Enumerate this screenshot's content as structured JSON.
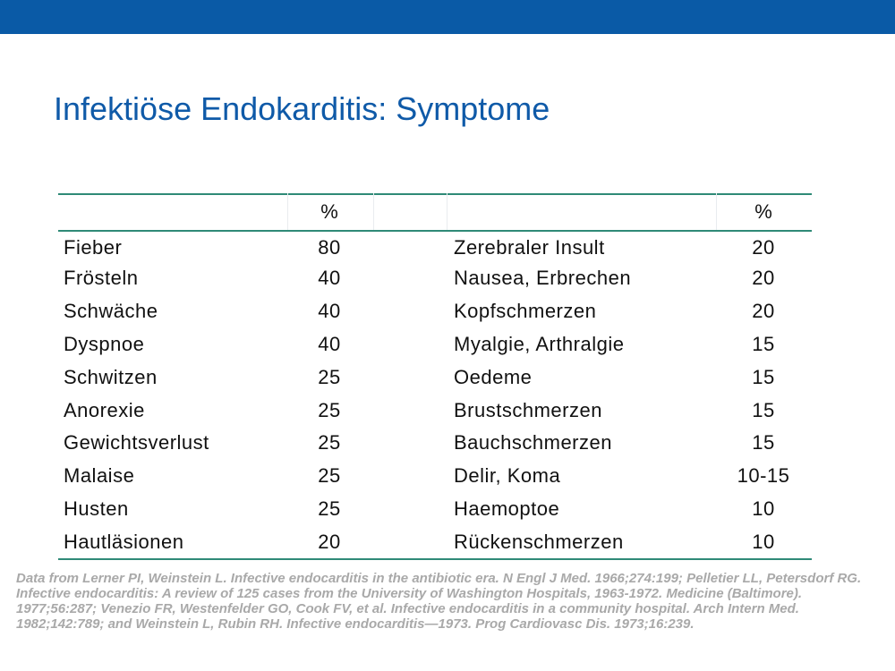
{
  "title": "Infektiöse Endokarditis: Symptome",
  "table": {
    "headers": {
      "left_name": "",
      "left_pct": "%",
      "right_name": "",
      "right_pct": "%"
    },
    "rows": [
      {
        "left": "Fieber",
        "left_pct": "80",
        "right": "Zerebraler Insult",
        "right_pct": "20"
      },
      {
        "left": "Frösteln",
        "left_pct": "40",
        "right": "Nausea, Erbrechen",
        "right_pct": "20"
      },
      {
        "left": "Schwäche",
        "left_pct": "40",
        "right": "Kopfschmerzen",
        "right_pct": "20"
      },
      {
        "left": "Dyspnoe",
        "left_pct": "40",
        "right": "Myalgie, Arthralgie",
        "right_pct": "15"
      },
      {
        "left": "Schwitzen",
        "left_pct": "25",
        "right": "Oedeme",
        "right_pct": "15"
      },
      {
        "left": "Anorexie",
        "left_pct": "25",
        "right": "Brustschmerzen",
        "right_pct": "15"
      },
      {
        "left": "Gewichtsverlust",
        "left_pct": "25",
        "right": "Bauchschmerzen",
        "right_pct": "15"
      },
      {
        "left": "Malaise",
        "left_pct": "25",
        "right": "Delir, Koma",
        "right_pct": "10-15"
      },
      {
        "left": "Husten",
        "left_pct": "25",
        "right": "Haemoptoe",
        "right_pct": "10"
      },
      {
        "left": "Hautläsionen",
        "left_pct": "20",
        "right": "Rückenschmerzen",
        "right_pct": "10"
      }
    ]
  },
  "source": "Data from Lerner PI, Weinstein L. Infective endocarditis in the antibiotic era. N Engl J Med. 1966;274:199; Pelletier LL, Petersdorf RG. Infective endocarditis: A review of 125 cases from the University of Washington Hospitals, 1963-1972. Medicine (Baltimore). 1977;56:287; Venezio FR, Westenfelder GO, Cook FV, et al. Infective endocarditis in a community hospital. Arch Intern Med. 1982;142:789; and Weinstein L, Rubin RH. Infective endocarditis—1973. Prog Cardiovasc Dis. 1973;16:239.",
  "colors": {
    "top_bar": "#0a5aa6",
    "title": "#0f5aa8",
    "table_rule": "#2f8a77",
    "source_text": "#a9a9a9"
  }
}
